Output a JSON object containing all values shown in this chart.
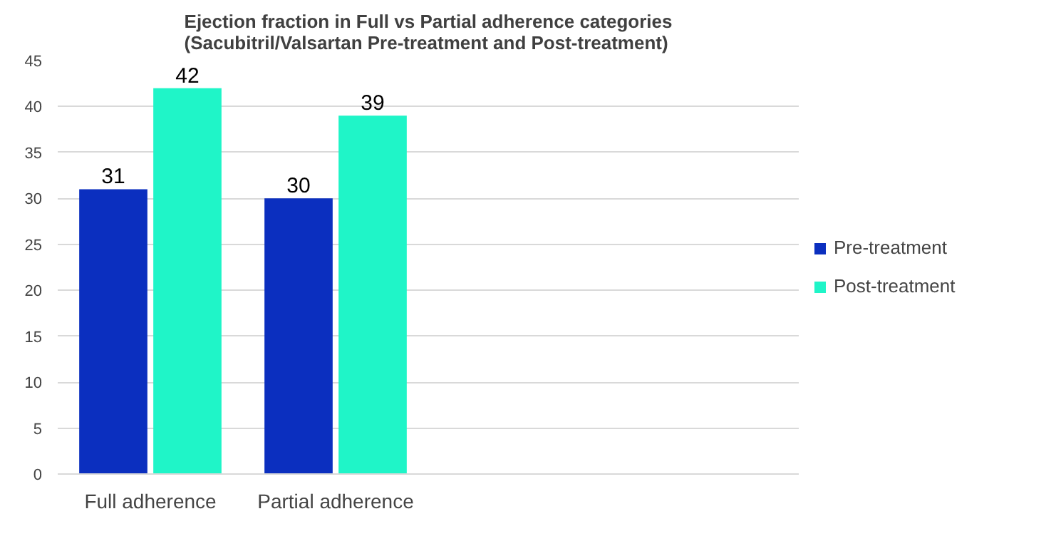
{
  "chart_data": {
    "type": "bar",
    "title": "Ejection fraction in Full vs Partial adherence categories (Sacubitril/Valsartan Pre-treatment and Post-treatment)",
    "categories": [
      "Full adherence",
      "Partial adherence",
      null,
      null
    ],
    "series": [
      {
        "name": "Pre-treatment",
        "color": "#0b2fbf",
        "values": [
          31,
          30,
          null,
          null
        ]
      },
      {
        "name": "Post-treatment",
        "color": "#1ff5c8",
        "values": [
          42,
          39,
          null,
          null
        ]
      }
    ],
    "ylim": [
      0,
      45
    ],
    "yticks": [
      0,
      5,
      10,
      15,
      20,
      25,
      30,
      35,
      40,
      45
    ],
    "grid": "y",
    "legend": "right",
    "data_labels": true
  }
}
